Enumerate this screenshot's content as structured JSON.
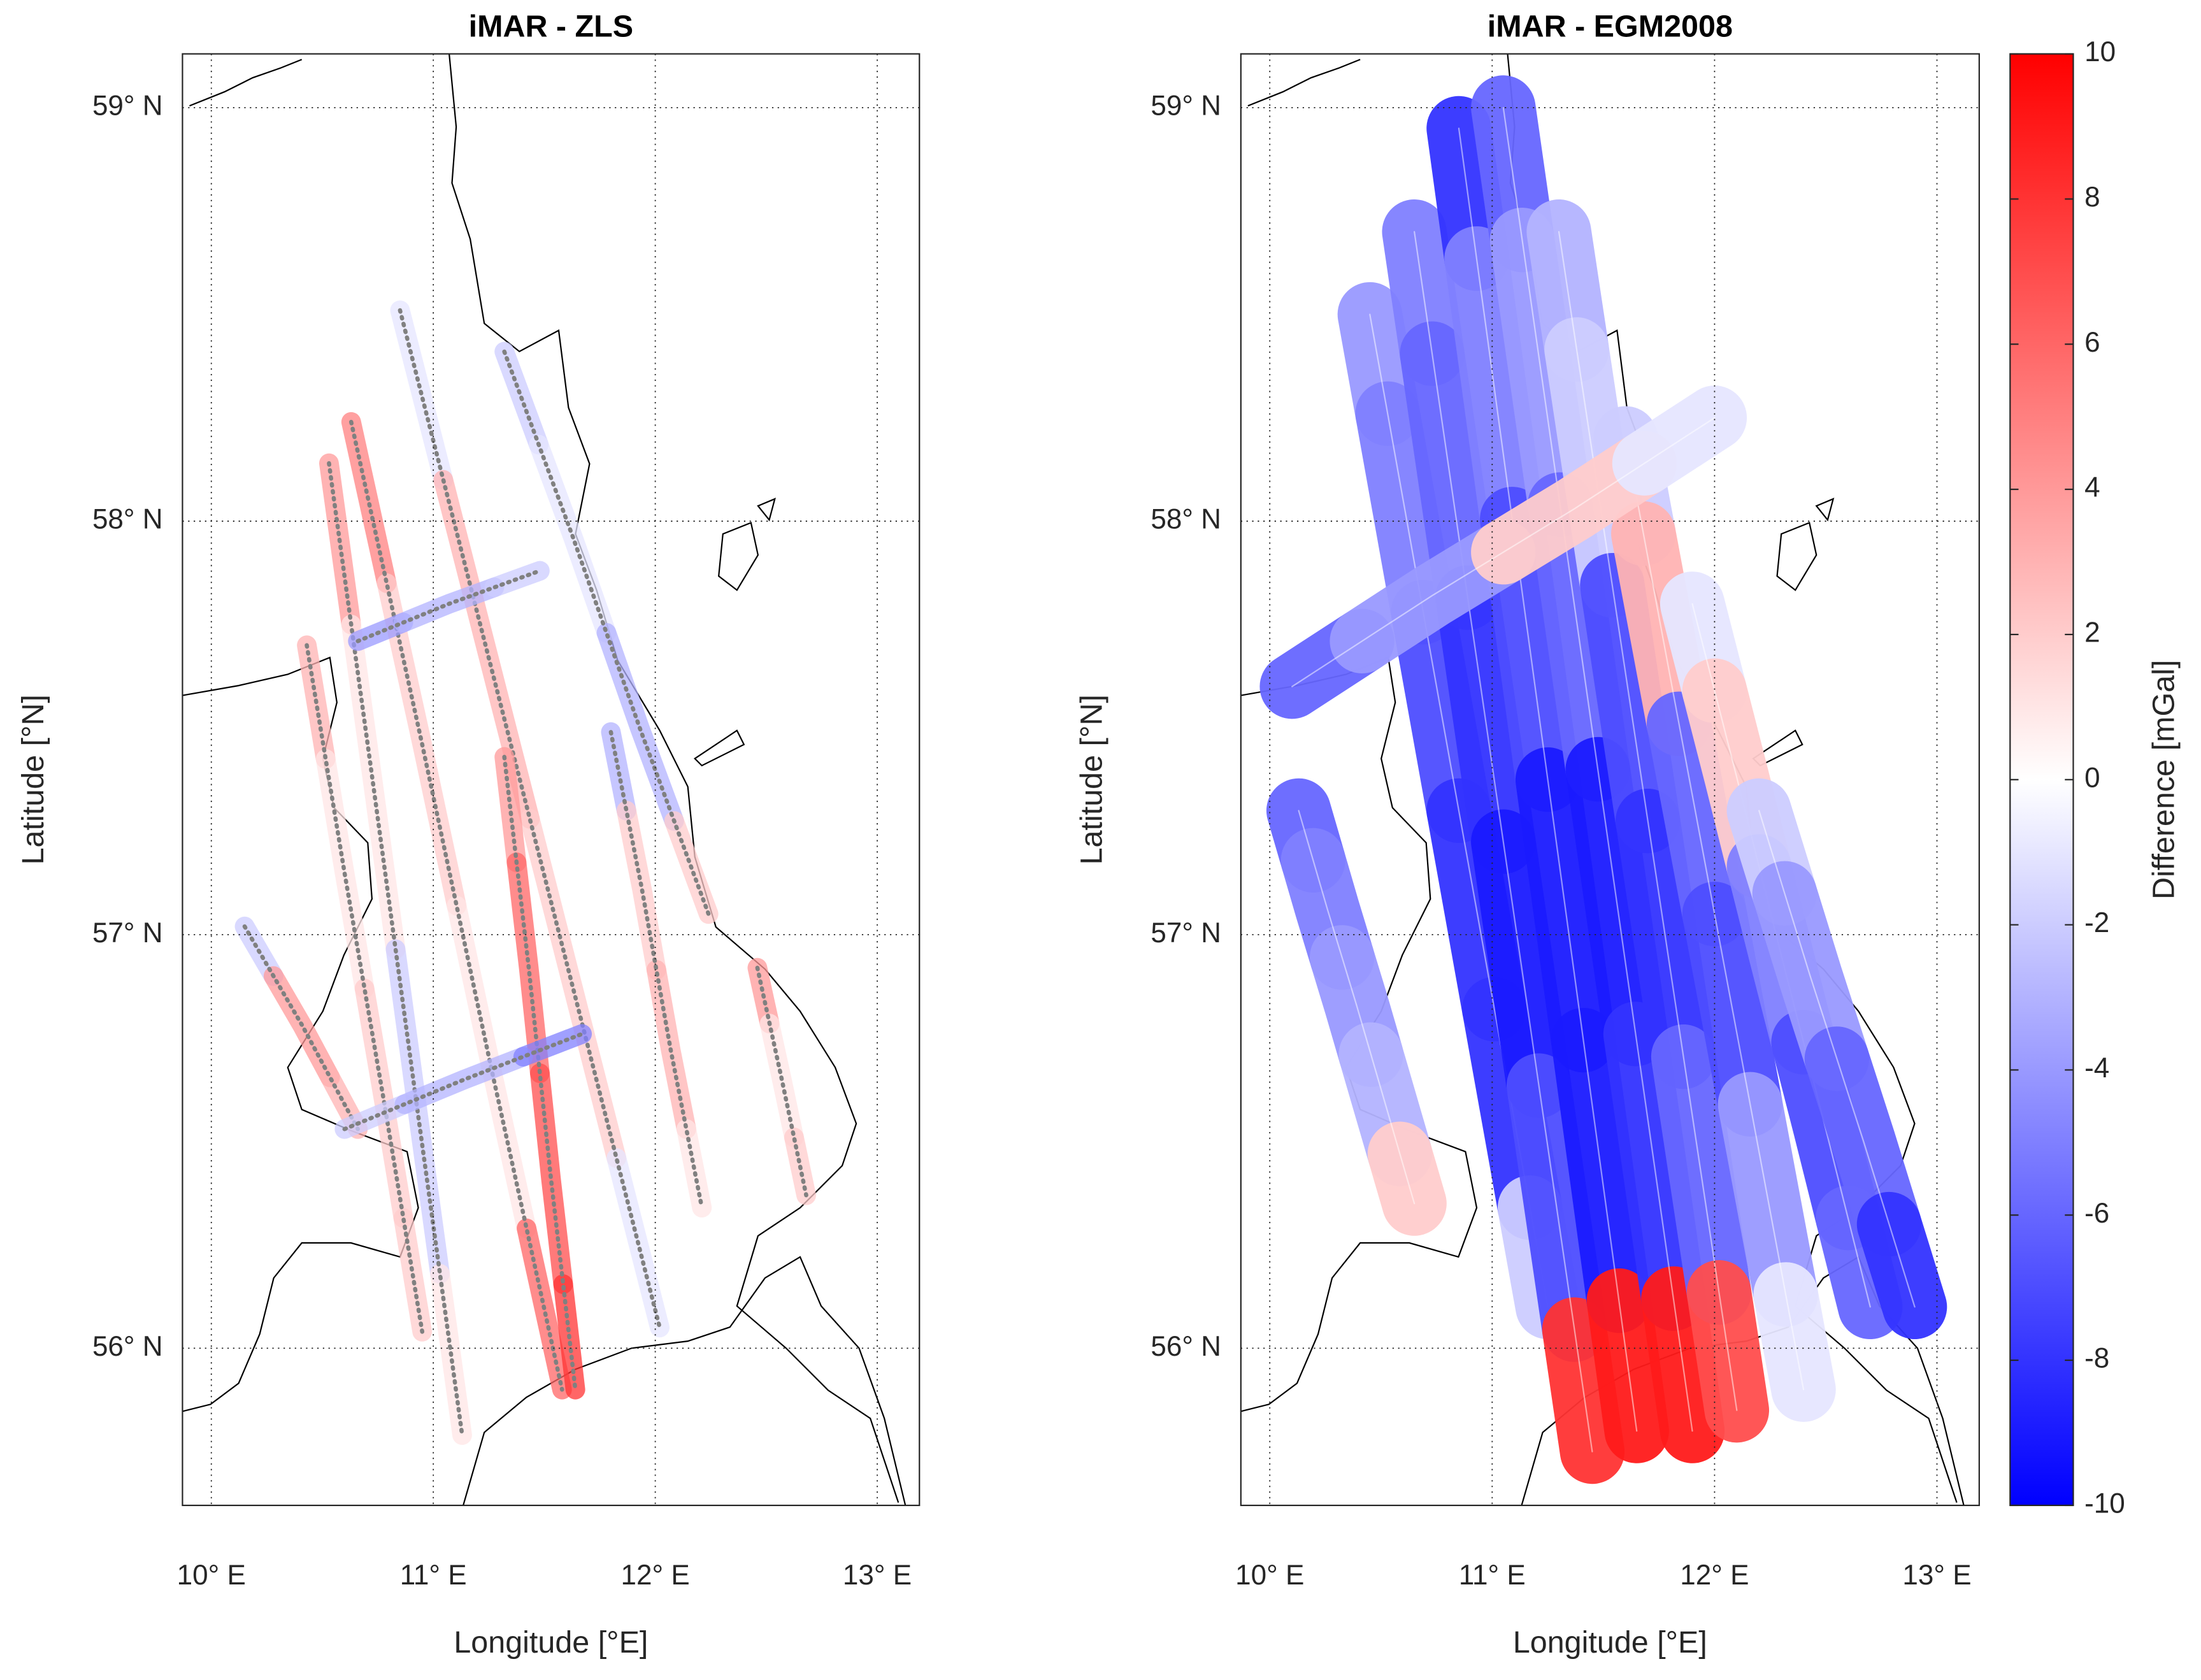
{
  "chart_data": [
    {
      "type": "map",
      "title": "iMAR - ZLS",
      "xlabel": "Longitude [°E]",
      "ylabel": "Latitude [°N]",
      "xlim": [
        9.87,
        13.19
      ],
      "ylim": [
        55.62,
        59.13
      ],
      "xticks": [
        {
          "value": 10,
          "label": "10° E"
        },
        {
          "value": 11,
          "label": "11° E"
        },
        {
          "value": 12,
          "label": "12° E"
        },
        {
          "value": 13,
          "label": "13° E"
        }
      ],
      "yticks": [
        {
          "value": 56,
          "label": "56° N"
        },
        {
          "value": 57,
          "label": "57° N"
        },
        {
          "value": 58,
          "label": "58° N"
        },
        {
          "value": 59,
          "label": "59° N"
        }
      ],
      "grid": true,
      "series": [
        {
          "lon": [
            10.85,
            11.24,
            11.63,
            12.02
          ],
          "lat": [
            58.51,
            57.69,
            56.87,
            56.05
          ],
          "values": [
            -1,
            3,
            2,
            -1
          ]
        },
        {
          "lon": [
            10.63,
            10.95,
            11.26,
            11.58
          ],
          "lat": [
            58.24,
            57.46,
            56.68,
            55.9
          ],
          "values": [
            5,
            2,
            1,
            6
          ]
        },
        {
          "lon": [
            10.53,
            10.73,
            10.93,
            11.13
          ],
          "lat": [
            58.14,
            57.36,
            56.57,
            55.79
          ],
          "values": [
            4,
            1,
            -2,
            1
          ]
        },
        {
          "lon": [
            10.43,
            10.6,
            10.78,
            10.95
          ],
          "lat": [
            57.7,
            57.15,
            56.59,
            56.04
          ],
          "values": [
            3,
            1,
            2,
            2
          ]
        },
        {
          "lon": [
            10.15,
            10.41,
            10.66
          ],
          "lat": [
            57.02,
            56.78,
            56.53
          ],
          "values": [
            -2,
            4,
            3
          ]
        },
        {
          "lon": [
            11.32,
            11.63,
            11.93,
            12.24
          ],
          "lat": [
            58.41,
            57.96,
            57.5,
            57.05
          ],
          "values": [
            -2,
            -1,
            -3,
            2
          ]
        },
        {
          "lon": [
            11.8,
            11.94,
            12.07,
            12.21
          ],
          "lat": [
            57.49,
            57.11,
            56.72,
            56.34
          ],
          "values": [
            -3,
            2,
            3,
            1
          ]
        },
        {
          "lon": [
            11.32,
            11.43,
            11.53,
            11.64
          ],
          "lat": [
            57.43,
            56.92,
            56.41,
            55.9
          ],
          "values": [
            4,
            6,
            7,
            8
          ]
        },
        {
          "lon": [
            10.66,
            11.07,
            11.48
          ],
          "lat": [
            57.71,
            57.8,
            57.88
          ],
          "values": [
            -4,
            -3,
            -2
          ]
        },
        {
          "lon": [
            10.6,
            11.14,
            11.67
          ],
          "lat": [
            56.53,
            56.65,
            56.76
          ],
          "values": [
            -2,
            -3,
            -5
          ]
        },
        {
          "lon": [
            12.46,
            12.57,
            12.68
          ],
          "lat": [
            56.92,
            56.65,
            56.37
          ],
          "values": [
            4,
            1,
            2
          ]
        }
      ]
    },
    {
      "type": "map",
      "title": "iMAR - EGM2008",
      "xlabel": "Longitude [°E]",
      "ylabel": "Latitude [°N]",
      "xlim": [
        9.87,
        13.19
      ],
      "ylim": [
        55.62,
        59.13
      ],
      "xticks": [
        {
          "value": 10,
          "label": "10° E"
        },
        {
          "value": 11,
          "label": "11° E"
        },
        {
          "value": 12,
          "label": "12° E"
        },
        {
          "value": 13,
          "label": "13° E"
        }
      ],
      "yticks": [
        {
          "value": 56,
          "label": "56° N"
        },
        {
          "value": 57,
          "label": "57° N"
        },
        {
          "value": 58,
          "label": "58° N"
        },
        {
          "value": 59,
          "label": "59° N"
        }
      ],
      "grid": true,
      "series": [
        {
          "lon": [
            10.13,
            10.26,
            10.39,
            10.52,
            10.65
          ],
          "lat": [
            57.3,
            57.06,
            56.83,
            56.59,
            56.35
          ],
          "values": [
            -6,
            -5,
            -4,
            -3,
            2
          ]
        },
        {
          "lon": [
            10.45,
            10.61,
            10.77,
            10.93,
            11.09,
            11.25
          ],
          "lat": [
            58.5,
            58.02,
            57.54,
            57.06,
            56.58,
            56.1
          ],
          "values": [
            -4,
            -5,
            -7,
            -8,
            -8,
            -2
          ]
        },
        {
          "lon": [
            10.65,
            10.81,
            10.97,
            11.13,
            11.29,
            11.45
          ],
          "lat": [
            58.7,
            58.11,
            57.52,
            56.93,
            56.34,
            55.75
          ],
          "values": [
            -5,
            -6,
            -8,
            -9,
            -7,
            8
          ]
        },
        {
          "lon": [
            10.85,
            11.01,
            11.17,
            11.33,
            11.49,
            11.65
          ],
          "lat": [
            58.95,
            58.32,
            57.69,
            57.06,
            56.43,
            55.8
          ],
          "values": [
            -8,
            -5,
            -7,
            -9,
            -9,
            9
          ]
        },
        {
          "lon": [
            11.05,
            11.22,
            11.39,
            11.56,
            11.73,
            11.9
          ],
          "lat": [
            59.0,
            58.36,
            57.72,
            57.08,
            56.44,
            55.8
          ],
          "values": [
            -6,
            -4,
            -6,
            -9,
            -8,
            9
          ]
        },
        {
          "lon": [
            11.3,
            11.46,
            11.62,
            11.78,
            11.94,
            12.1
          ],
          "lat": [
            58.7,
            58.13,
            57.56,
            56.99,
            56.42,
            55.85
          ],
          "values": [
            -3,
            -2,
            -7,
            -8,
            -6,
            7
          ]
        },
        {
          "lon": [
            11.6,
            11.76,
            11.92,
            12.08,
            12.24,
            12.4
          ],
          "lat": [
            58.2,
            57.74,
            57.28,
            56.82,
            56.36,
            55.9
          ],
          "values": [
            -2,
            3,
            -6,
            -7,
            -4,
            -1
          ]
        },
        {
          "lon": [
            11.9,
            12.1,
            12.3,
            12.5,
            12.7
          ],
          "lat": [
            57.8,
            57.38,
            56.95,
            56.53,
            56.1
          ],
          "values": [
            -1,
            2,
            -5,
            -7,
            -6
          ]
        },
        {
          "lon": [
            12.2,
            12.43,
            12.67,
            12.9
          ],
          "lat": [
            57.3,
            56.9,
            56.5,
            56.1
          ],
          "values": [
            -2,
            -4,
            -6,
            -8
          ]
        },
        {
          "lon": [
            10.1,
            10.73,
            11.37,
            12.0
          ],
          "lat": [
            57.6,
            57.82,
            58.03,
            58.25
          ],
          "values": [
            -6,
            -4,
            2,
            -1
          ]
        }
      ],
      "colorbar": {
        "label": "Difference [mGal]",
        "lim": [
          -10,
          10
        ],
        "ticks": [
          -10,
          -8,
          -6,
          -4,
          -2,
          0,
          2,
          4,
          6,
          8,
          10
        ],
        "colormap": [
          "#0000ff",
          "#ffffff",
          "#ff0000"
        ]
      }
    }
  ]
}
